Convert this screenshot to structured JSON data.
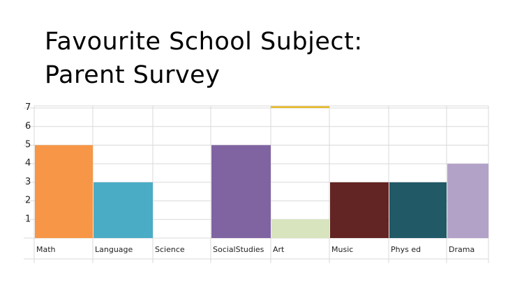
{
  "slide": {
    "title_line1": "Favourite School Subject:",
    "title_line2": "Parent Survey"
  },
  "chart_data": {
    "type": "bar",
    "categories": [
      "Math",
      "Language",
      "Science",
      "SocialStudies",
      "Art",
      "Music",
      "Phys ed",
      "Drama"
    ],
    "values": [
      5,
      3,
      0,
      5,
      1,
      3,
      3,
      4
    ],
    "title": "",
    "xlabel": "",
    "ylabel": "",
    "ylim": [
      0,
      7
    ],
    "yticks": [
      "1",
      "2",
      "3",
      "4",
      "5",
      "6",
      "7"
    ],
    "grid": true,
    "legend": "none",
    "colors": [
      "#F79646",
      "#4BACC6",
      "#FFFFFF",
      "#8064A2",
      "#D7E4BD",
      "#632523",
      "#215967",
      "#B3A2C7"
    ],
    "partial_bar": {
      "category": "Science",
      "value": 7.2,
      "color": "#E6B820"
    }
  }
}
